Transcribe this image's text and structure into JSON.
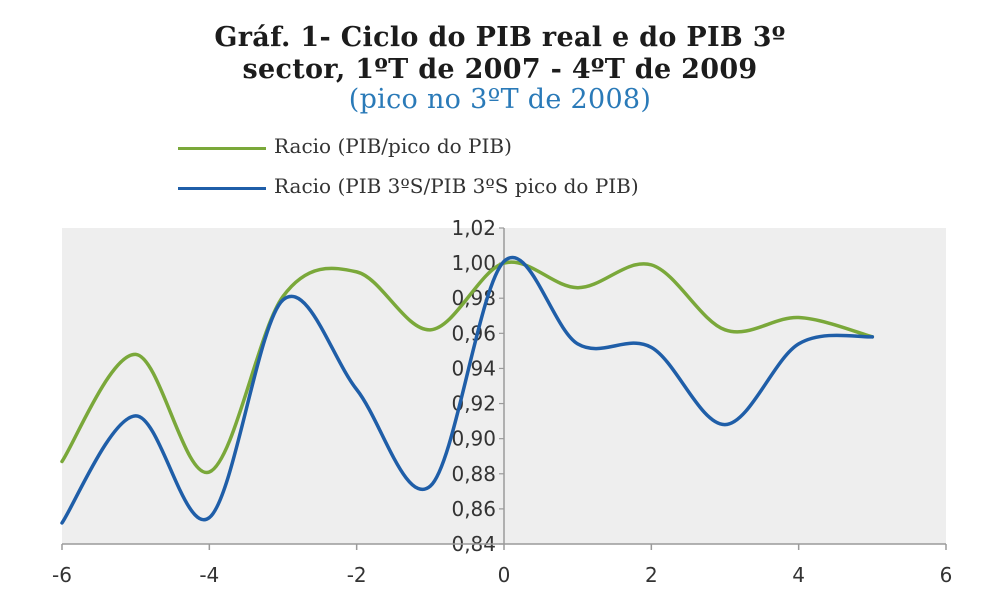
{
  "title": {
    "line1": "Gráf. 1- Ciclo do PIB real e do PIB 3º",
    "line2": "sector, 1ºT de 2007 - 4ºT de 2009",
    "line3": "(pico no 3ºT de 2008)"
  },
  "colors": {
    "series1": "#7aa83a",
    "series2": "#1f5ea8",
    "subtitle": "#2a7ab8",
    "plot_background": "#eeeeee",
    "axis": "#9a9a9a"
  },
  "chart_data": {
    "type": "line",
    "xlim": [
      -6,
      6
    ],
    "ylim": [
      0.84,
      1.02
    ],
    "x_ticks": [
      "-6",
      "-4",
      "-2",
      "0",
      "2",
      "4",
      "6"
    ],
    "y_ticks": [
      "0,84",
      "0,86",
      "0,88",
      "0,90",
      "0,92",
      "0,94",
      "0,96",
      "0,98",
      "1,00",
      "1,02"
    ],
    "grid": false,
    "legend_position": "top",
    "series": [
      {
        "name": "Racio (PIB/pico do PIB)",
        "x": [
          -6,
          -5,
          -4,
          -3,
          -2,
          -1,
          0,
          1,
          2,
          3,
          4,
          5
        ],
        "y": [
          0.887,
          0.948,
          0.881,
          0.981,
          0.995,
          0.962,
          1.0,
          0.986,
          0.999,
          0.962,
          0.969,
          0.958
        ]
      },
      {
        "name": "Racio (PIB 3ºS/PIB 3ºS pico do PIB)",
        "x": [
          -6,
          -5,
          -4,
          -3,
          -2,
          -1,
          0,
          1,
          2,
          3,
          4,
          5
        ],
        "y": [
          0.852,
          0.913,
          0.855,
          0.979,
          0.928,
          0.873,
          1.001,
          0.954,
          0.952,
          0.908,
          0.954,
          0.958
        ]
      }
    ]
  }
}
